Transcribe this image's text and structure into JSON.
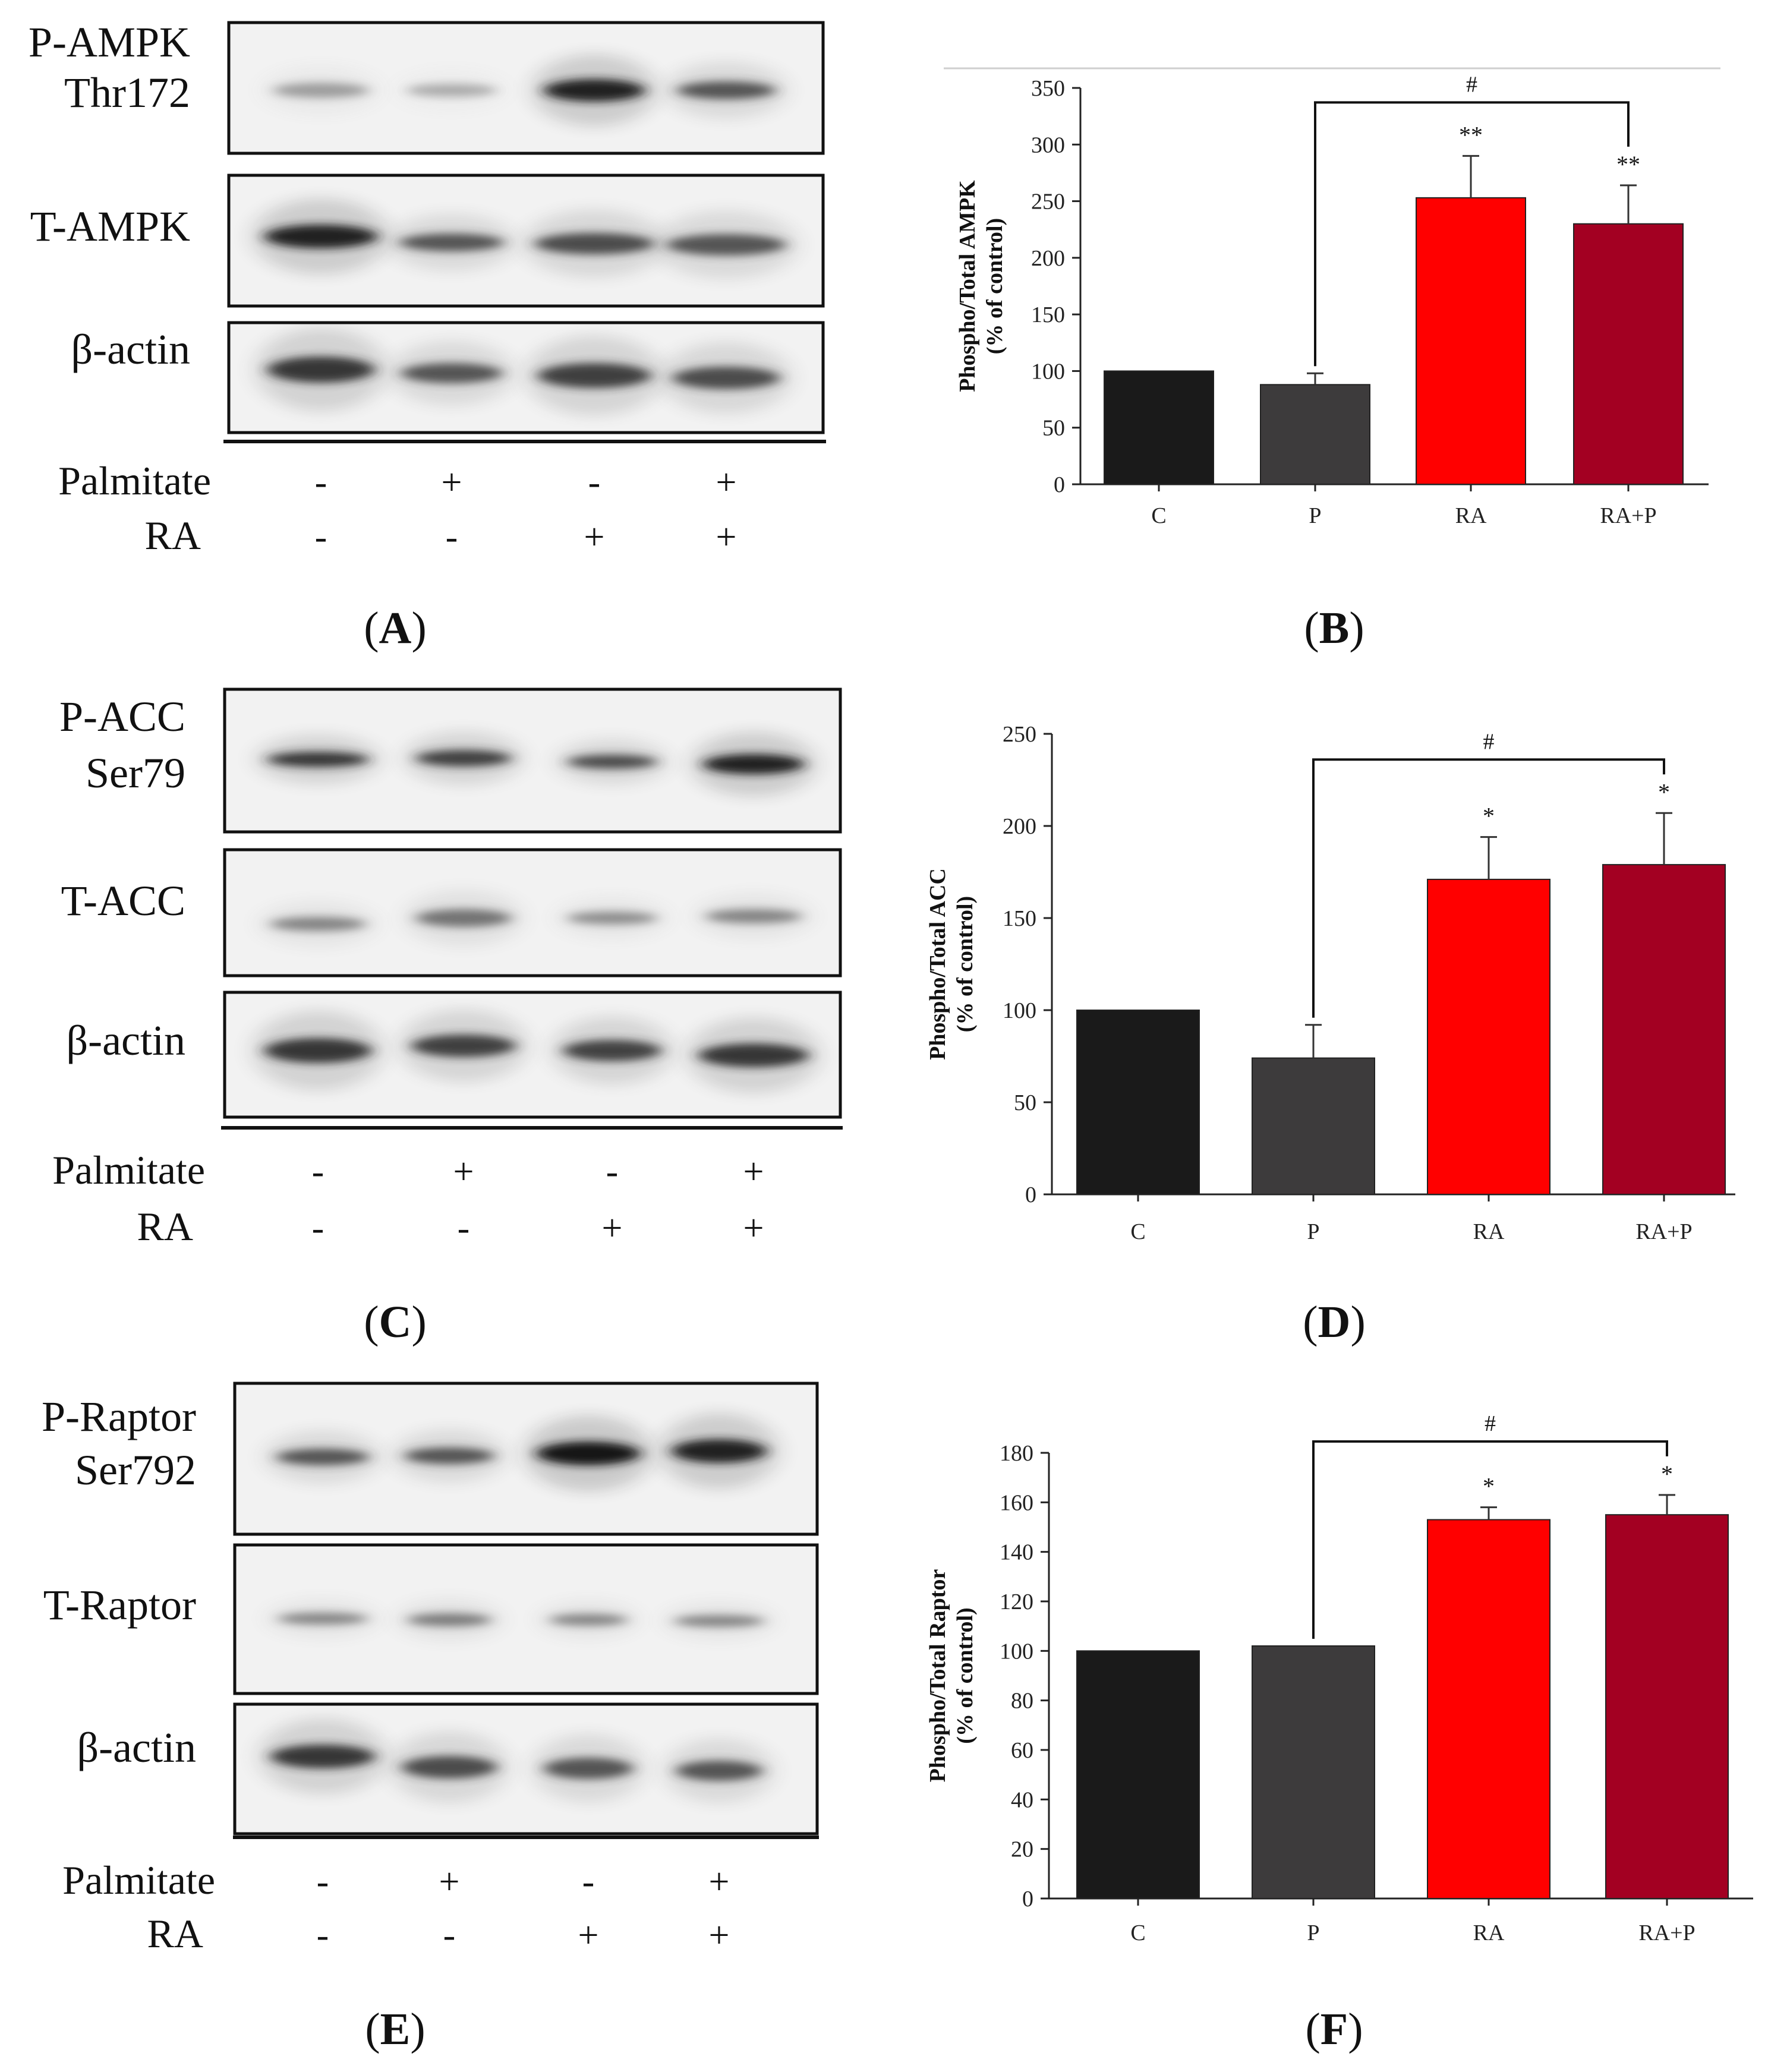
{
  "figure": {
    "panels": [
      {
        "id": "A",
        "label": "A",
        "blot_labels": [
          [
            "P-AMPK",
            "Thr172"
          ],
          [
            "T-AMPK"
          ],
          [
            "β-actin"
          ]
        ],
        "treatments": [
          {
            "name": "Palmitate",
            "values": [
              "-",
              "+",
              "-",
              "+"
            ]
          },
          {
            "name": "RA",
            "values": [
              "-",
              "-",
              "+",
              "+"
            ]
          }
        ]
      },
      {
        "id": "C",
        "label": "C",
        "blot_labels": [
          [
            "P-ACC",
            "Ser79"
          ],
          [
            "T-ACC"
          ],
          [
            "β-actin"
          ]
        ],
        "treatments": [
          {
            "name": "Palmitate",
            "values": [
              "-",
              "+",
              "-",
              "+"
            ]
          },
          {
            "name": "RA",
            "values": [
              "-",
              "-",
              "+",
              "+"
            ]
          }
        ]
      },
      {
        "id": "E",
        "label": "E",
        "blot_labels": [
          [
            "P-Raptor",
            "Ser792"
          ],
          [
            "T-Raptor"
          ],
          [
            "β-actin"
          ]
        ],
        "treatments": [
          {
            "name": "Palmitate",
            "values": [
              "-",
              "+",
              "-",
              "+"
            ]
          },
          {
            "name": "RA",
            "values": [
              "-",
              "-",
              "+",
              "+"
            ]
          }
        ]
      }
    ]
  },
  "chart_data": [
    {
      "panel": "B",
      "type": "bar",
      "ylabel": [
        "Phospho/Total AMPK",
        "(% of control)"
      ],
      "categories": [
        "C",
        "P",
        "RA",
        "RA+P"
      ],
      "values": [
        100,
        88,
        253,
        230
      ],
      "errors": [
        0,
        10,
        37,
        34
      ],
      "ylim": [
        0,
        350
      ],
      "yticks": [
        0,
        50,
        100,
        150,
        200,
        250,
        300,
        350
      ],
      "significance": [
        "",
        "",
        "**",
        "**"
      ],
      "bracket": {
        "from": "P",
        "to": "RA+P",
        "label": "#"
      },
      "bar_colors": [
        "#1a1a1a",
        "#3d3b3c",
        "#ff0000",
        "#a30022"
      ],
      "grid": false
    },
    {
      "panel": "D",
      "type": "bar",
      "ylabel": [
        "Phospho/Total ACC",
        "(% of control)"
      ],
      "categories": [
        "C",
        "P",
        "RA",
        "RA+P"
      ],
      "values": [
        100,
        74,
        171,
        179
      ],
      "errors": [
        0,
        18,
        23,
        28
      ],
      "ylim": [
        0,
        250
      ],
      "yticks": [
        0,
        50,
        100,
        150,
        200,
        250
      ],
      "significance": [
        "",
        "",
        "*",
        "*"
      ],
      "bracket": {
        "from": "P",
        "to": "RA+P",
        "label": "#"
      },
      "bar_colors": [
        "#1a1a1a",
        "#3d3b3c",
        "#ff0000",
        "#a30022"
      ],
      "grid": false
    },
    {
      "panel": "F",
      "type": "bar",
      "ylabel": [
        "Phospho/Total Raptor",
        "(% of control)"
      ],
      "categories": [
        "C",
        "P",
        "RA",
        "RA+P"
      ],
      "values": [
        100,
        102,
        153,
        155
      ],
      "errors": [
        0,
        0,
        5,
        8
      ],
      "ylim": [
        0,
        180
      ],
      "yticks": [
        0,
        20,
        40,
        60,
        80,
        100,
        120,
        140,
        160,
        180
      ],
      "significance": [
        "",
        "",
        "*",
        "*"
      ],
      "bracket": {
        "from": "P",
        "to": "RA+P",
        "label": "#"
      },
      "bar_colors": [
        "#1a1a1a",
        "#3d3b3c",
        "#ff0000",
        "#a30022"
      ],
      "grid": false
    }
  ],
  "chart_labels": [
    "B",
    "D",
    "F"
  ]
}
